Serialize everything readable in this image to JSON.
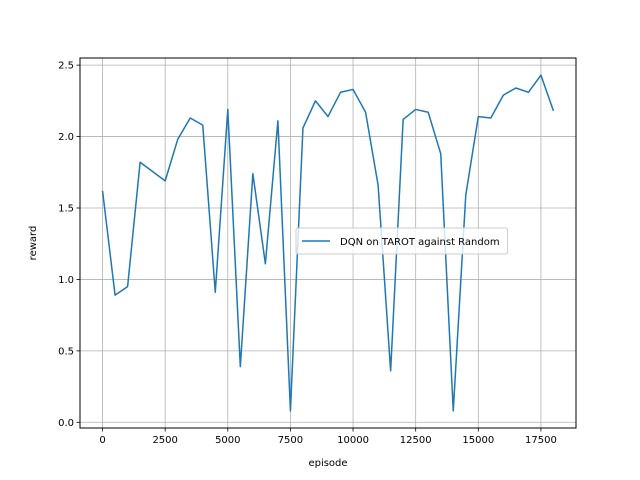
{
  "chart_data": {
    "type": "line",
    "xlabel": "episode",
    "ylabel": "reward",
    "xlim": [
      -900,
      18900
    ],
    "ylim": [
      -0.04,
      2.55
    ],
    "xticks": [
      0,
      2500,
      5000,
      7500,
      10000,
      12500,
      15000,
      17500
    ],
    "yticks": [
      0.0,
      0.5,
      1.0,
      1.5,
      2.0,
      2.5
    ],
    "grid": true,
    "legend_position": "right",
    "colors": {
      "line": "#1f77b4",
      "grid": "#b0b0b0"
    },
    "series": [
      {
        "name": "DQN on TAROT against Random",
        "x": [
          0,
          500,
          1000,
          1500,
          2500,
          3000,
          3500,
          4000,
          4500,
          5000,
          5500,
          6000,
          6500,
          7000,
          7500,
          8000,
          8500,
          9000,
          9500,
          10000,
          10500,
          11000,
          11500,
          12000,
          12500,
          13000,
          13500,
          14000,
          14500,
          15000,
          15500,
          16000,
          16500,
          17000,
          17500,
          18000
        ],
        "y": [
          1.62,
          0.89,
          0.95,
          1.82,
          1.69,
          1.98,
          2.13,
          2.08,
          0.91,
          2.19,
          0.39,
          1.74,
          1.11,
          2.11,
          0.08,
          2.06,
          2.25,
          2.14,
          2.31,
          2.33,
          2.17,
          1.66,
          0.36,
          2.12,
          2.19,
          2.17,
          1.88,
          0.08,
          1.59,
          2.14,
          2.13,
          2.29,
          2.34,
          2.31,
          2.43,
          2.18
        ]
      }
    ]
  }
}
